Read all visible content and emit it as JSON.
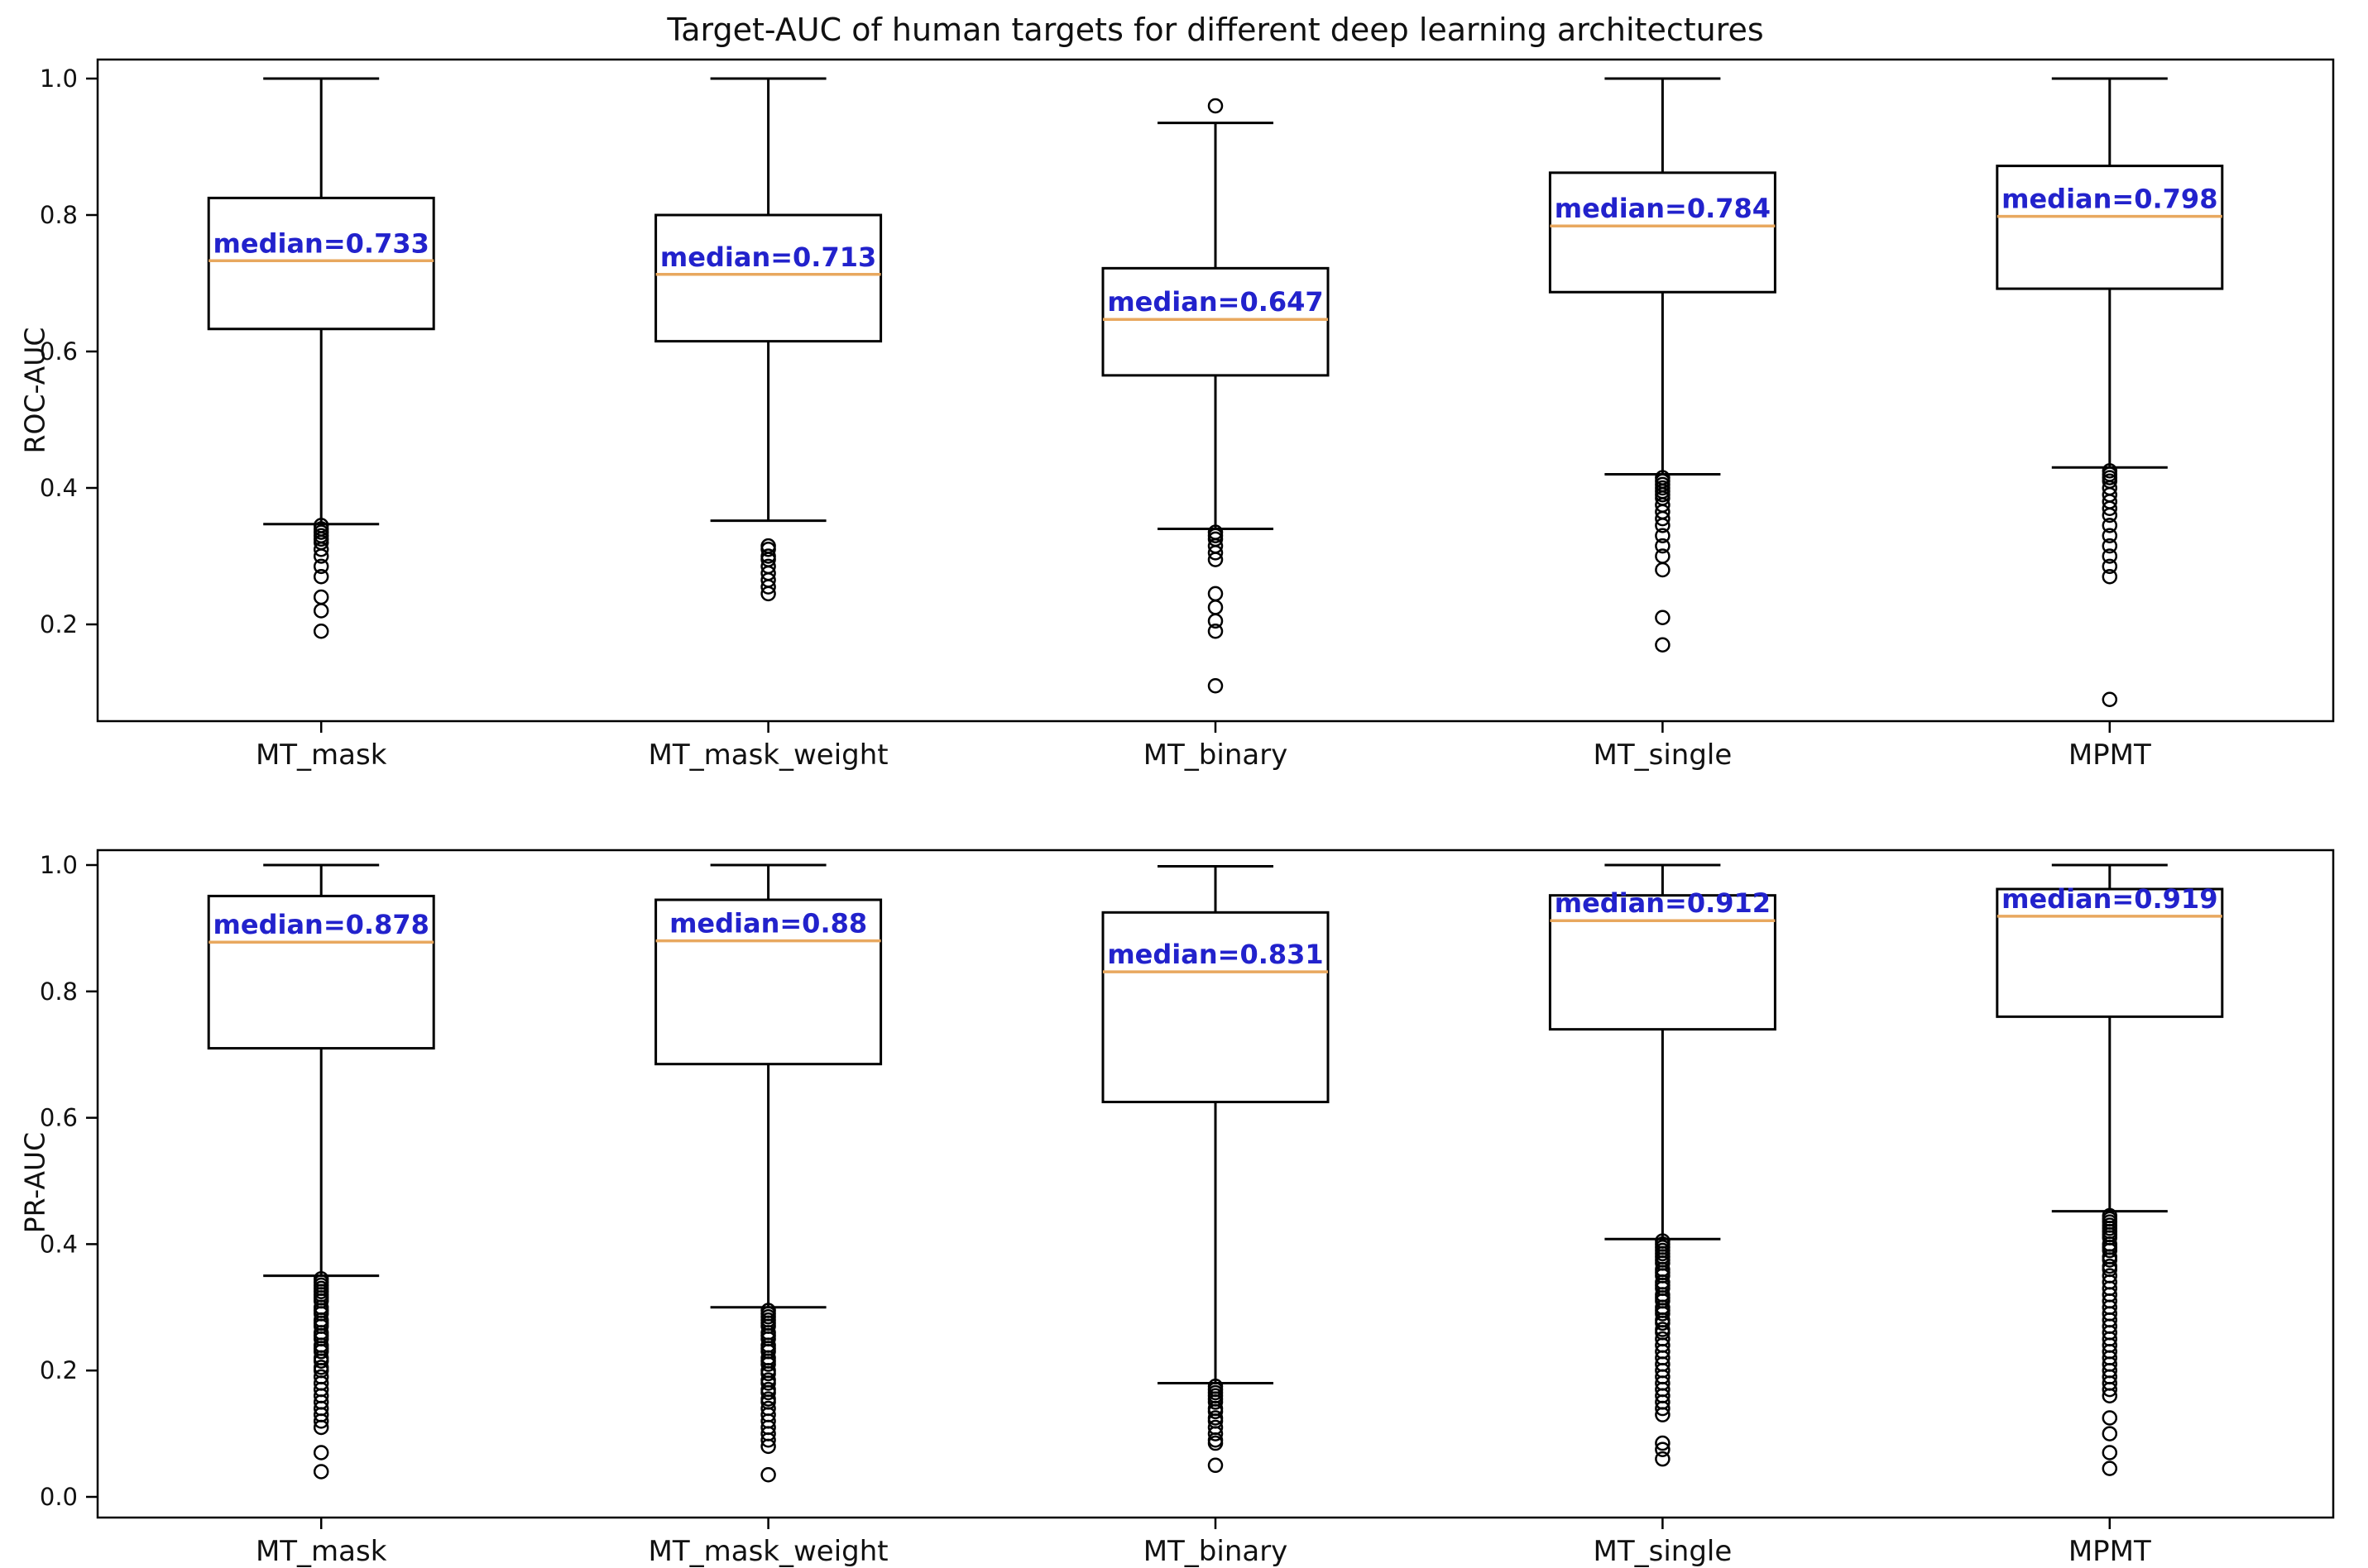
{
  "figure": {
    "title": "Target-AUC of human targets for different deep learning architectures"
  },
  "colors": {
    "background": "#ffffff",
    "axis": "#000000",
    "box_edge": "#000000",
    "median_line": "#e8a85f",
    "median_text": "#2222cc",
    "outlier_edge": "#000000"
  },
  "chart_data": [
    {
      "type": "boxplot",
      "panel": "top",
      "title": "Target-AUC of human targets for different deep learning architectures",
      "xlabel": "",
      "ylabel": "ROC-AUC",
      "ylim": [
        0.045,
        1.045
      ],
      "yticks": [
        "0.2",
        "0.4",
        "0.6",
        "0.8",
        "1.0"
      ],
      "ytick_values": [
        0.2,
        0.4,
        0.6,
        0.8,
        1.0
      ],
      "grid": false,
      "categories": [
        "MT_mask",
        "MT_mask_weight",
        "MT_binary",
        "MT_single",
        "MPMT"
      ],
      "boxes": [
        {
          "category": "MT_mask",
          "median_label": "median=0.733",
          "whislo": 0.347,
          "q1": 0.633,
          "med": 0.733,
          "q3": 0.825,
          "whishi": 1.0,
          "outliers": [
            0.345,
            0.34,
            0.335,
            0.33,
            0.325,
            0.32,
            0.31,
            0.3,
            0.285,
            0.27,
            0.24,
            0.22,
            0.19
          ]
        },
        {
          "category": "MT_mask_weight",
          "median_label": "median=0.713",
          "whislo": 0.352,
          "q1": 0.615,
          "med": 0.713,
          "q3": 0.8,
          "whishi": 1.0,
          "outliers": [
            0.315,
            0.31,
            0.3,
            0.295,
            0.285,
            0.275,
            0.265,
            0.255,
            0.245
          ]
        },
        {
          "category": "MT_binary",
          "median_label": "median=0.647",
          "whislo": 0.34,
          "q1": 0.565,
          "med": 0.647,
          "q3": 0.722,
          "whishi": 0.935,
          "outliers": [
            0.96,
            0.335,
            0.33,
            0.325,
            0.315,
            0.305,
            0.295,
            0.245,
            0.225,
            0.205,
            0.19,
            0.11
          ]
        },
        {
          "category": "MT_single",
          "median_label": "median=0.784",
          "whislo": 0.42,
          "q1": 0.687,
          "med": 0.784,
          "q3": 0.862,
          "whishi": 1.0,
          "outliers": [
            0.415,
            0.41,
            0.405,
            0.4,
            0.395,
            0.39,
            0.385,
            0.375,
            0.365,
            0.355,
            0.345,
            0.33,
            0.315,
            0.3,
            0.28,
            0.21,
            0.17
          ]
        },
        {
          "category": "MPMT",
          "median_label": "median=0.798",
          "whislo": 0.43,
          "q1": 0.692,
          "med": 0.798,
          "q3": 0.872,
          "whishi": 1.0,
          "outliers": [
            0.425,
            0.42,
            0.415,
            0.41,
            0.4,
            0.39,
            0.38,
            0.37,
            0.36,
            0.345,
            0.33,
            0.315,
            0.3,
            0.285,
            0.27,
            0.09
          ]
        }
      ]
    },
    {
      "type": "boxplot",
      "panel": "bottom",
      "title": "",
      "xlabel": "",
      "ylabel": "PR-AUC",
      "ylim": [
        -0.033,
        1.03
      ],
      "yticks": [
        "0.0",
        "0.2",
        "0.4",
        "0.6",
        "0.8",
        "1.0"
      ],
      "ytick_values": [
        0.0,
        0.2,
        0.4,
        0.6,
        0.8,
        1.0
      ],
      "grid": false,
      "categories": [
        "MT_mask",
        "MT_mask_weight",
        "MT_binary",
        "MT_single",
        "MPMT"
      ],
      "boxes": [
        {
          "category": "MT_mask",
          "median_label": "median=0.878",
          "whislo": 0.35,
          "q1": 0.71,
          "med": 0.878,
          "q3": 0.951,
          "whishi": 1.0,
          "outliers": [
            0.345,
            0.34,
            0.335,
            0.33,
            0.325,
            0.32,
            0.315,
            0.31,
            0.3,
            0.295,
            0.29,
            0.28,
            0.275,
            0.27,
            0.26,
            0.255,
            0.25,
            0.24,
            0.235,
            0.23,
            0.22,
            0.215,
            0.205,
            0.2,
            0.19,
            0.18,
            0.17,
            0.16,
            0.15,
            0.14,
            0.13,
            0.12,
            0.11,
            0.07,
            0.04
          ]
        },
        {
          "category": "MT_mask_weight",
          "median_label": "median=0.88",
          "whislo": 0.3,
          "q1": 0.685,
          "med": 0.88,
          "q3": 0.945,
          "whishi": 1.0,
          "outliers": [
            0.295,
            0.29,
            0.285,
            0.28,
            0.275,
            0.27,
            0.26,
            0.255,
            0.25,
            0.24,
            0.235,
            0.23,
            0.22,
            0.215,
            0.21,
            0.2,
            0.195,
            0.185,
            0.18,
            0.17,
            0.165,
            0.155,
            0.15,
            0.14,
            0.13,
            0.12,
            0.11,
            0.1,
            0.09,
            0.08,
            0.035
          ]
        },
        {
          "category": "MT_binary",
          "median_label": "median=0.831",
          "whislo": 0.18,
          "q1": 0.625,
          "med": 0.831,
          "q3": 0.925,
          "whishi": 0.998,
          "outliers": [
            0.175,
            0.17,
            0.165,
            0.16,
            0.155,
            0.15,
            0.14,
            0.135,
            0.125,
            0.12,
            0.11,
            0.1,
            0.09,
            0.085,
            0.05
          ]
        },
        {
          "category": "MT_single",
          "median_label": "median=0.912",
          "whislo": 0.408,
          "q1": 0.74,
          "med": 0.912,
          "q3": 0.952,
          "whishi": 1.0,
          "outliers": [
            0.405,
            0.4,
            0.395,
            0.39,
            0.385,
            0.38,
            0.375,
            0.37,
            0.36,
            0.355,
            0.35,
            0.34,
            0.335,
            0.33,
            0.32,
            0.315,
            0.31,
            0.3,
            0.295,
            0.29,
            0.28,
            0.275,
            0.265,
            0.26,
            0.25,
            0.24,
            0.23,
            0.22,
            0.21,
            0.2,
            0.19,
            0.18,
            0.17,
            0.16,
            0.15,
            0.14,
            0.13,
            0.085,
            0.075,
            0.06
          ]
        },
        {
          "category": "MPMT",
          "median_label": "median=0.919",
          "whislo": 0.452,
          "q1": 0.76,
          "med": 0.919,
          "q3": 0.962,
          "whishi": 1.0,
          "outliers": [
            0.445,
            0.44,
            0.435,
            0.43,
            0.425,
            0.42,
            0.415,
            0.41,
            0.4,
            0.395,
            0.39,
            0.38,
            0.375,
            0.365,
            0.36,
            0.35,
            0.34,
            0.33,
            0.32,
            0.31,
            0.3,
            0.29,
            0.28,
            0.27,
            0.26,
            0.25,
            0.24,
            0.23,
            0.22,
            0.21,
            0.2,
            0.19,
            0.18,
            0.17,
            0.16,
            0.125,
            0.1,
            0.07,
            0.045
          ]
        }
      ]
    }
  ]
}
